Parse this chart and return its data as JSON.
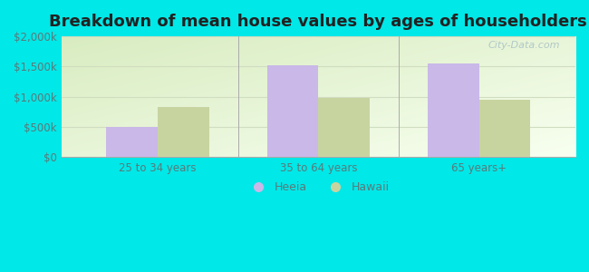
{
  "title": "Breakdown of mean house values by ages of householders",
  "categories": [
    "25 to 34 years",
    "35 to 64 years",
    "65 years+"
  ],
  "heeia_values": [
    500000,
    1525000,
    1550000
  ],
  "hawaii_values": [
    825000,
    975000,
    950000
  ],
  "heeia_color": "#c9b8e8",
  "hawaii_color": "#c8d4a0",
  "background_color": "#00e8e8",
  "plot_bg_top": "#e2edd4",
  "plot_bg_bottom": "#eef5e2",
  "ylim": [
    0,
    2000000
  ],
  "yticks": [
    0,
    500000,
    1000000,
    1500000,
    2000000
  ],
  "ytick_labels": [
    "$0",
    "$500k",
    "$1,000k",
    "$1,500k",
    "$2,000k"
  ],
  "legend_labels": [
    "Heeia",
    "Hawaii"
  ],
  "bar_width": 0.32,
  "title_fontsize": 13,
  "tick_fontsize": 8.5,
  "legend_fontsize": 9,
  "tick_color": "#5a7a7a",
  "grid_color": "#d0ddc0",
  "watermark_color": "#b0c8c8"
}
